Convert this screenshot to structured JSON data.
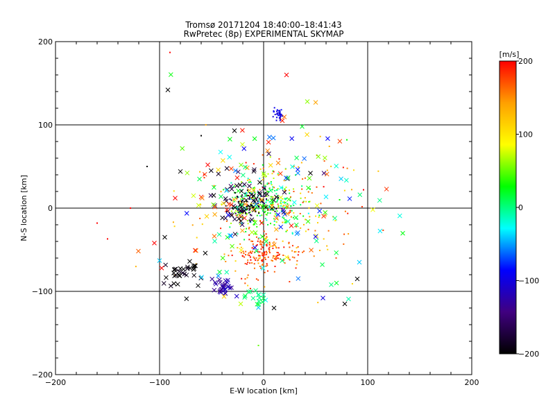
{
  "chart_data": {
    "type": "scatter",
    "title": "Tromsø 20171204 18:40:00–18:41:43",
    "subtitle": "RwPretec (8p) EXPERIMENTAL SKYMAP",
    "xlabel": "E-W location [km]",
    "ylabel": "N-S location [km]",
    "xlim": [
      -200,
      200
    ],
    "ylim": [
      -200,
      200
    ],
    "xticks": [
      -200,
      -100,
      0,
      100,
      200
    ],
    "yticks": [
      -200,
      -100,
      0,
      100,
      200
    ],
    "grid": true,
    "colorbar": {
      "label": "[m/s]",
      "range": [
        -200,
        200
      ],
      "ticks": [
        200,
        100,
        0,
        -100,
        -200
      ],
      "stops": [
        "#ff0000",
        "#ffa000",
        "#ffff00",
        "#00ff00",
        "#00ffff",
        "#0000ff",
        "#400080",
        "#000000"
      ]
    },
    "marker_types": [
      "x",
      "dot"
    ],
    "clusters": [
      {
        "cx": 0,
        "cy": 5,
        "sx": 18,
        "sy": 18,
        "n": 260,
        "vmin": -30,
        "vmax": 80,
        "marker": "dot"
      },
      {
        "cx": -15,
        "cy": 5,
        "sx": 10,
        "sy": 8,
        "n": 90,
        "vmin": -220,
        "vmax": -150,
        "marker": "dot"
      },
      {
        "cx": 0,
        "cy": -55,
        "sx": 15,
        "sy": 10,
        "n": 140,
        "vmin": 150,
        "vmax": 200,
        "marker": "dot"
      },
      {
        "cx": 10,
        "cy": -10,
        "sx": 40,
        "sy": 40,
        "n": 180,
        "vmin": 100,
        "vmax": 200,
        "marker": "dot"
      },
      {
        "cx": 15,
        "cy": 113,
        "sx": 3,
        "sy": 3,
        "n": 35,
        "vmin": -120,
        "vmax": -80,
        "marker": "dot"
      },
      {
        "cx": -40,
        "cy": -95,
        "sx": 5,
        "sy": 5,
        "n": 30,
        "vmin": -140,
        "vmax": -110,
        "marker": "x"
      },
      {
        "cx": -75,
        "cy": -75,
        "sx": 12,
        "sy": 10,
        "n": 35,
        "vmin": -220,
        "vmax": -180,
        "marker": "x"
      },
      {
        "cx": -20,
        "cy": 15,
        "sx": 18,
        "sy": 20,
        "n": 60,
        "vmin": -220,
        "vmax": -160,
        "marker": "x"
      },
      {
        "cx": 0,
        "cy": 0,
        "sx": 45,
        "sy": 45,
        "n": 160,
        "vmin": -100,
        "vmax": 200,
        "marker": "x"
      },
      {
        "cx": -10,
        "cy": -105,
        "sx": 5,
        "sy": 5,
        "n": 15,
        "vmin": -10,
        "vmax": 20,
        "marker": "x"
      }
    ],
    "points": [
      {
        "x": -92,
        "y": 142,
        "v": -200,
        "m": "x"
      },
      {
        "x": 22,
        "y": 160,
        "v": 200,
        "m": "x"
      },
      {
        "x": -90,
        "y": 187,
        "v": 200,
        "m": "dot"
      },
      {
        "x": 42,
        "y": 128,
        "v": 60,
        "m": "x"
      },
      {
        "x": 50,
        "y": 127,
        "v": 140,
        "m": "x"
      },
      {
        "x": 18,
        "y": 105,
        "v": 190,
        "m": "x"
      },
      {
        "x": 37,
        "y": 98,
        "v": 20,
        "m": "x"
      },
      {
        "x": -60,
        "y": 87,
        "v": -200,
        "m": "dot"
      },
      {
        "x": -28,
        "y": 93,
        "v": -200,
        "m": "x"
      },
      {
        "x": 80,
        "y": 82,
        "v": 30,
        "m": "dot"
      },
      {
        "x": -112,
        "y": 50,
        "v": -200,
        "m": "dot"
      },
      {
        "x": -160,
        "y": -18,
        "v": 200,
        "m": "dot"
      },
      {
        "x": -150,
        "y": -37,
        "v": 200,
        "m": "dot"
      },
      {
        "x": -105,
        "y": -42,
        "v": 200,
        "m": "x"
      },
      {
        "x": 96,
        "y": 22,
        "v": 200,
        "m": "dot"
      },
      {
        "x": 73,
        "y": 10,
        "v": 30,
        "m": "dot"
      },
      {
        "x": 92,
        "y": -65,
        "v": -40,
        "m": "x"
      },
      {
        "x": 90,
        "y": -85,
        "v": -200,
        "m": "x"
      },
      {
        "x": 78,
        "y": -115,
        "v": -200,
        "m": "x"
      },
      {
        "x": 70,
        "y": -90,
        "v": 20,
        "m": "x"
      },
      {
        "x": 10,
        "y": -120,
        "v": -200,
        "m": "x"
      },
      {
        "x": -5,
        "y": -165,
        "v": 50,
        "m": "dot"
      },
      {
        "x": -22,
        "y": -115,
        "v": 70,
        "m": "x"
      },
      {
        "x": -98,
        "y": -72,
        "v": 200,
        "m": "x"
      },
      {
        "x": -100,
        "y": -63,
        "v": -40,
        "m": "x"
      },
      {
        "x": 65,
        "y": -92,
        "v": 0,
        "m": "x"
      },
      {
        "x": 57,
        "y": -108,
        "v": -100,
        "m": "x"
      },
      {
        "x": 45,
        "y": 42,
        "v": -200,
        "m": "x"
      },
      {
        "x": 58,
        "y": 42,
        "v": -150,
        "m": "x"
      },
      {
        "x": -80,
        "y": 44,
        "v": -200,
        "m": "x"
      },
      {
        "x": -95,
        "y": -35,
        "v": -200,
        "m": "x"
      },
      {
        "x": -85,
        "y": 12,
        "v": 200,
        "m": "x"
      },
      {
        "x": -128,
        "y": 0,
        "v": 200,
        "m": "dot"
      }
    ]
  }
}
